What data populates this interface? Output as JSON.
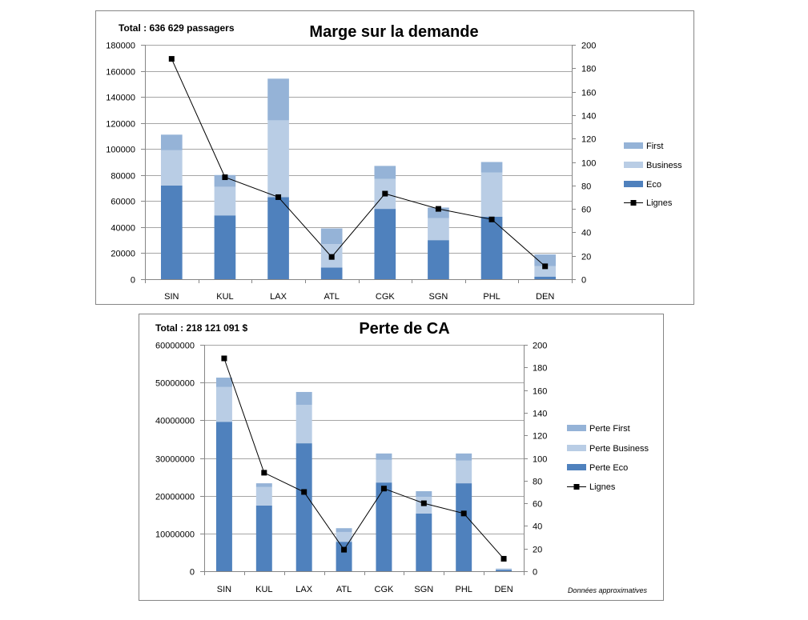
{
  "chart_data": [
    {
      "type": "bar",
      "title": "Marge sur la demande",
      "total_label": "Total : 636 629 passagers",
      "categories": [
        "SIN",
        "KUL",
        "LAX",
        "ATL",
        "CGK",
        "SGN",
        "PHL",
        "DEN"
      ],
      "series": [
        {
          "name": "Eco",
          "type": "bar",
          "stacked": true,
          "axis": "left",
          "color": "#4f81bd",
          "values": [
            72000,
            49000,
            63000,
            9000,
            54000,
            30000,
            48000,
            2000
          ]
        },
        {
          "name": "Business",
          "type": "bar",
          "stacked": true,
          "axis": "left",
          "color": "#b9cde5",
          "values": [
            27000,
            22000,
            59000,
            18000,
            23000,
            17000,
            34000,
            8000
          ]
        },
        {
          "name": "First",
          "type": "bar",
          "stacked": true,
          "axis": "left",
          "color": "#95b3d7",
          "values": [
            12000,
            9000,
            32000,
            12000,
            10000,
            8000,
            8000,
            9000
          ]
        },
        {
          "name": "Lignes",
          "type": "line",
          "axis": "right",
          "color": "#000000",
          "marker": "square",
          "values": [
            188,
            87,
            70,
            19,
            73,
            60,
            51,
            11
          ]
        }
      ],
      "ylim": [
        0,
        180000
      ],
      "yticks": [
        0,
        20000,
        40000,
        60000,
        80000,
        100000,
        120000,
        140000,
        160000,
        180000
      ],
      "y2lim": [
        0,
        200
      ],
      "y2ticks": [
        0,
        20,
        40,
        60,
        80,
        100,
        120,
        140,
        160,
        180,
        200
      ],
      "grid": true,
      "legend": "right"
    },
    {
      "type": "bar",
      "title": "Perte de CA",
      "total_label": "Total : 218 121 091 $",
      "categories": [
        "SIN",
        "KUL",
        "LAX",
        "ATL",
        "CGK",
        "SGN",
        "PHL",
        "DEN"
      ],
      "series": [
        {
          "name": "Perte Eco",
          "type": "bar",
          "stacked": true,
          "axis": "left",
          "color": "#4f81bd",
          "values": [
            39600000,
            17400000,
            33900000,
            7800000,
            23500000,
            15300000,
            23300000,
            400000
          ]
        },
        {
          "name": "Perte Business",
          "type": "bar",
          "stacked": true,
          "axis": "left",
          "color": "#b9cde5",
          "values": [
            9200000,
            4900000,
            10200000,
            2600000,
            6000000,
            4400000,
            6000000,
            200000
          ]
        },
        {
          "name": "Perte First",
          "type": "bar",
          "stacked": true,
          "axis": "left",
          "color": "#95b3d7",
          "values": [
            2500000,
            1000000,
            3400000,
            1000000,
            1700000,
            1500000,
            1900000,
            100000
          ]
        },
        {
          "name": "Lignes",
          "type": "line",
          "axis": "right",
          "color": "#000000",
          "marker": "square",
          "values": [
            188,
            87,
            70,
            19,
            73,
            60,
            51,
            11
          ]
        }
      ],
      "ylim": [
        0,
        60000000
      ],
      "yticks": [
        0,
        10000000,
        20000000,
        30000000,
        40000000,
        50000000,
        60000000
      ],
      "y2lim": [
        0,
        200
      ],
      "y2ticks": [
        0,
        20,
        40,
        60,
        80,
        100,
        120,
        140,
        160,
        180,
        200
      ],
      "grid": true,
      "legend": "right",
      "note": "Données approximatives"
    }
  ]
}
